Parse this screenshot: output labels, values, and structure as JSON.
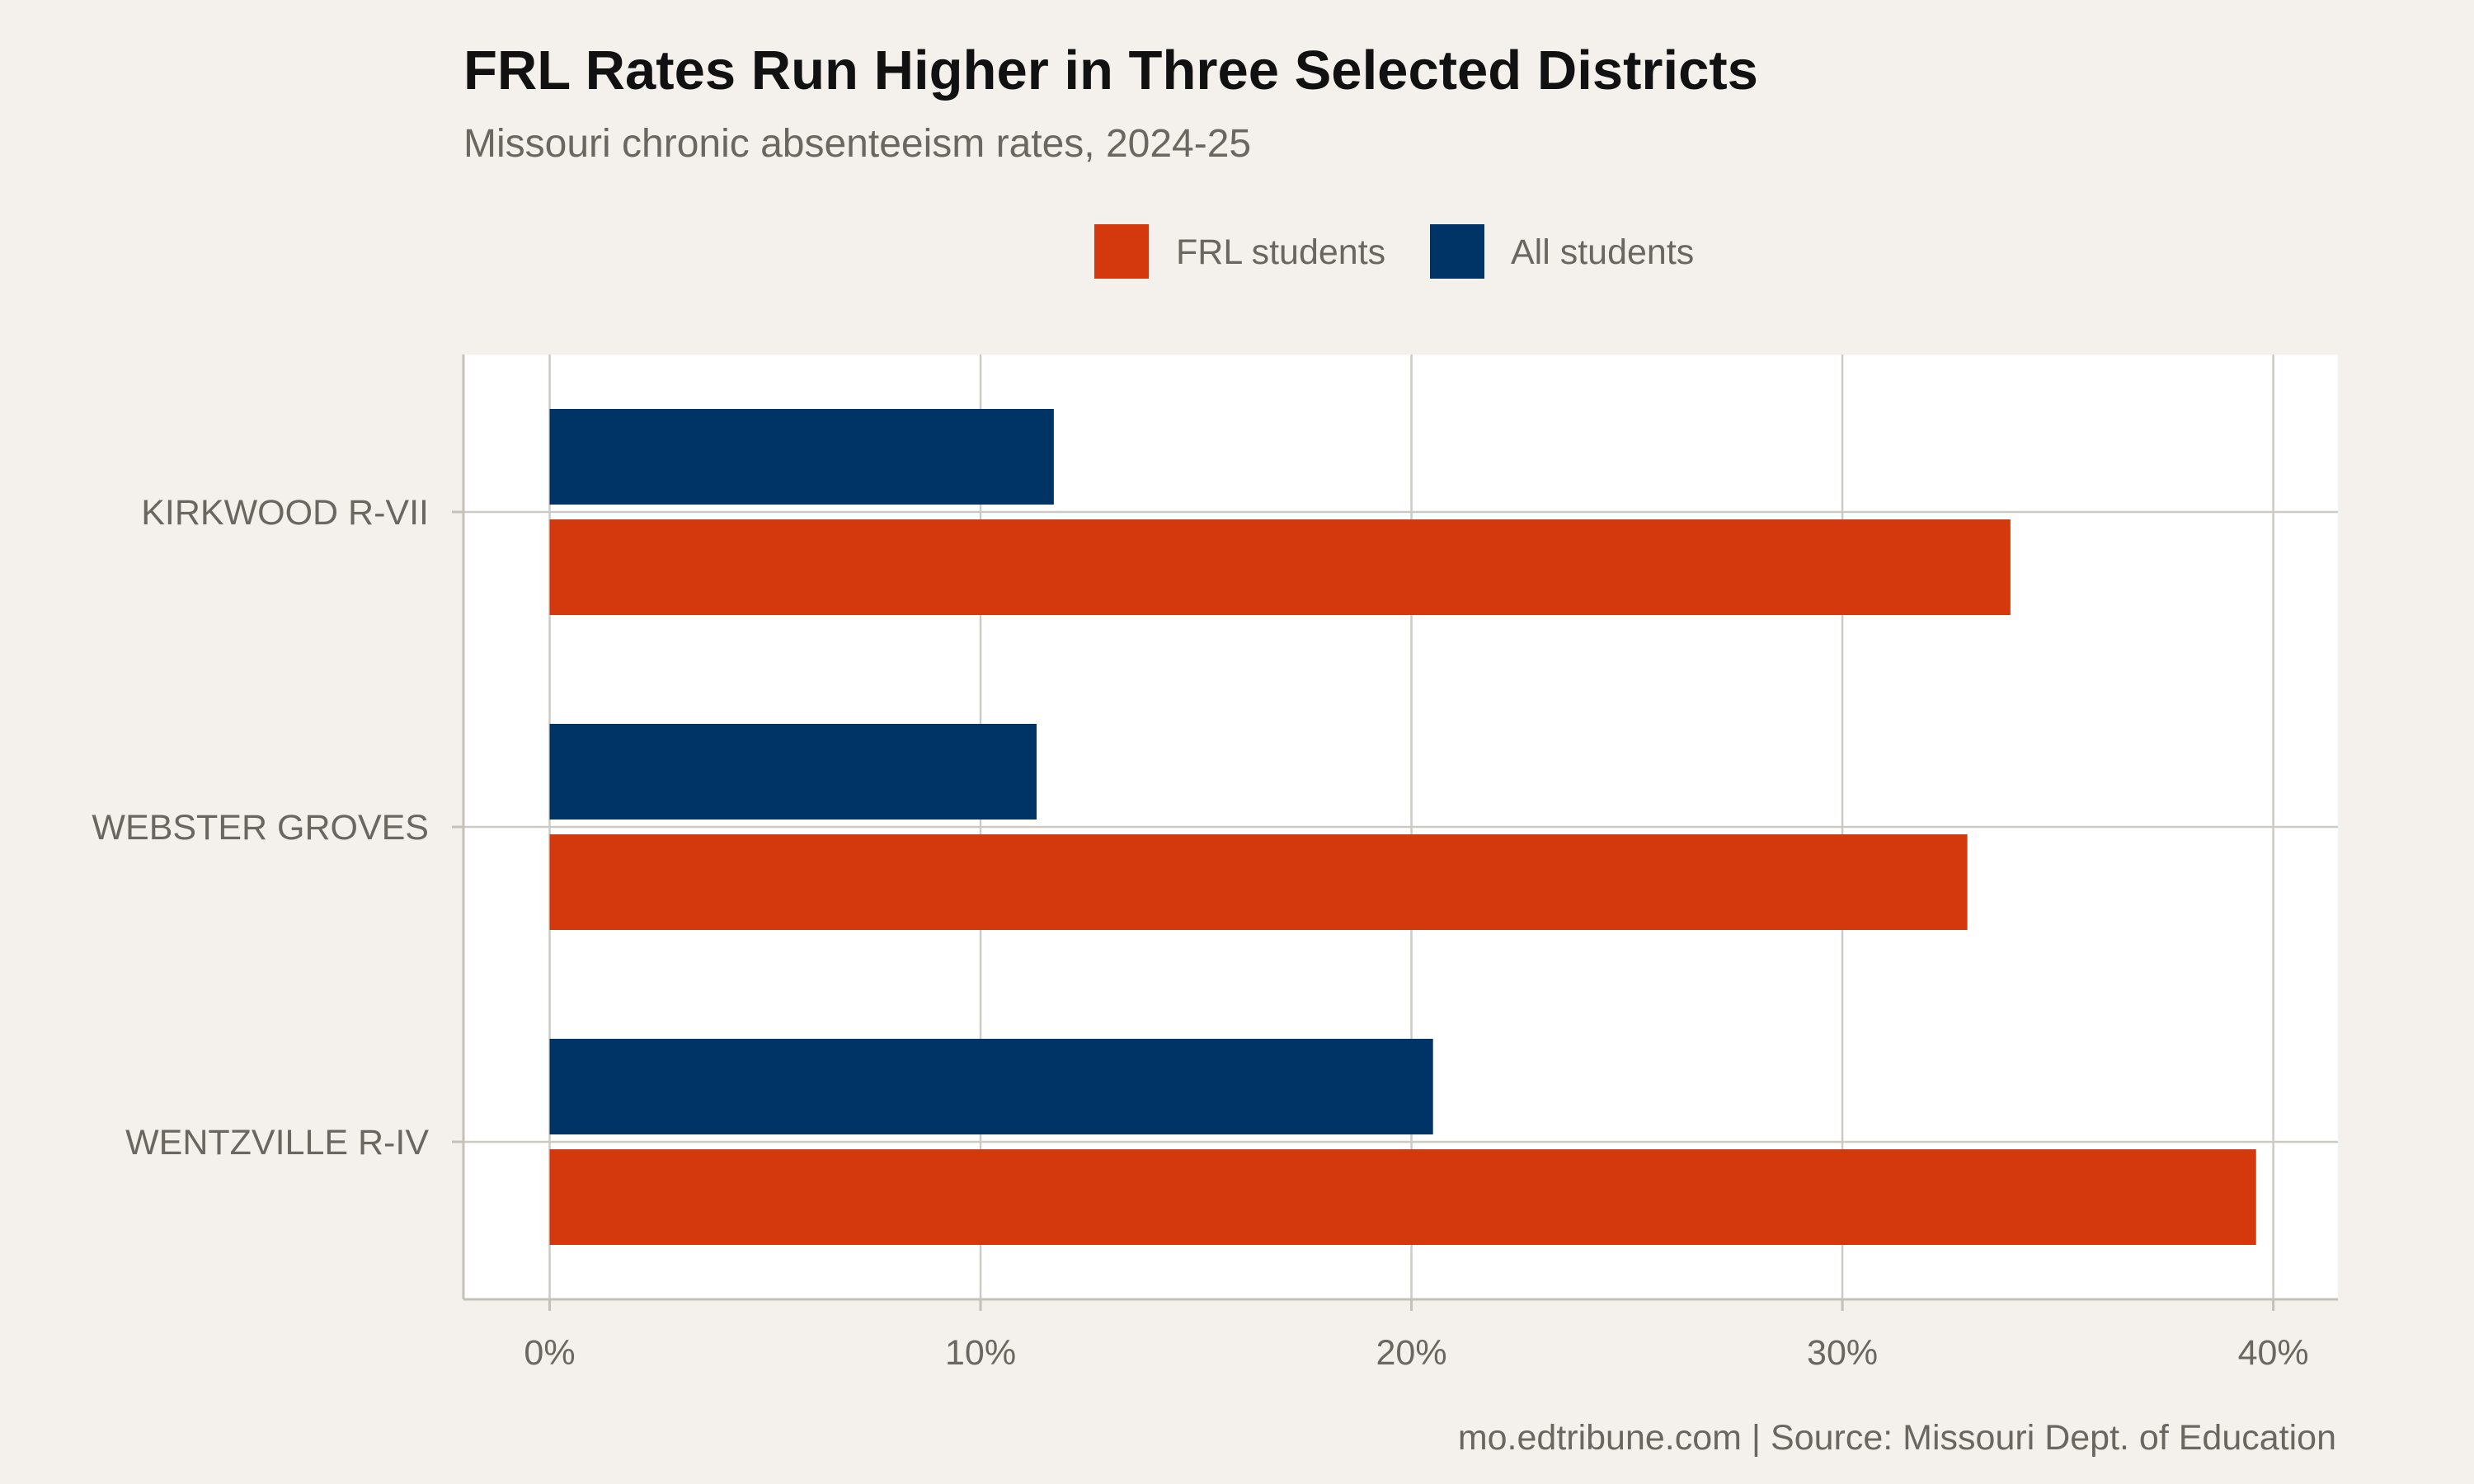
{
  "chart_data": {
    "type": "bar",
    "orientation": "horizontal",
    "title": "FRL Rates Run Higher in Three Selected Districts",
    "subtitle": "Missouri chronic absenteeism rates, 2024-25",
    "caption": "mo.edtribune.com | Source: Missouri Dept. of Education",
    "xlabel": "",
    "ylabel": "",
    "categories": [
      "KIRKWOOD R-VII",
      "WEBSTER GROVES",
      "WENTZVILLE R-IV"
    ],
    "series": [
      {
        "name": "FRL students",
        "color": "#d4380d",
        "values": [
          33.9,
          32.9,
          39.6
        ]
      },
      {
        "name": "All students",
        "color": "#003366",
        "values": [
          11.7,
          11.3,
          20.5
        ]
      }
    ],
    "xlim": [
      -2,
      41.5
    ],
    "x_ticks": [
      0,
      10,
      20,
      30,
      40
    ],
    "x_tick_labels": [
      "0%",
      "10%",
      "20%",
      "30%",
      "40%"
    ],
    "grid": true,
    "legend_position": "top",
    "panel_background": "#ffffff",
    "page_background": "#f4f1ec"
  }
}
